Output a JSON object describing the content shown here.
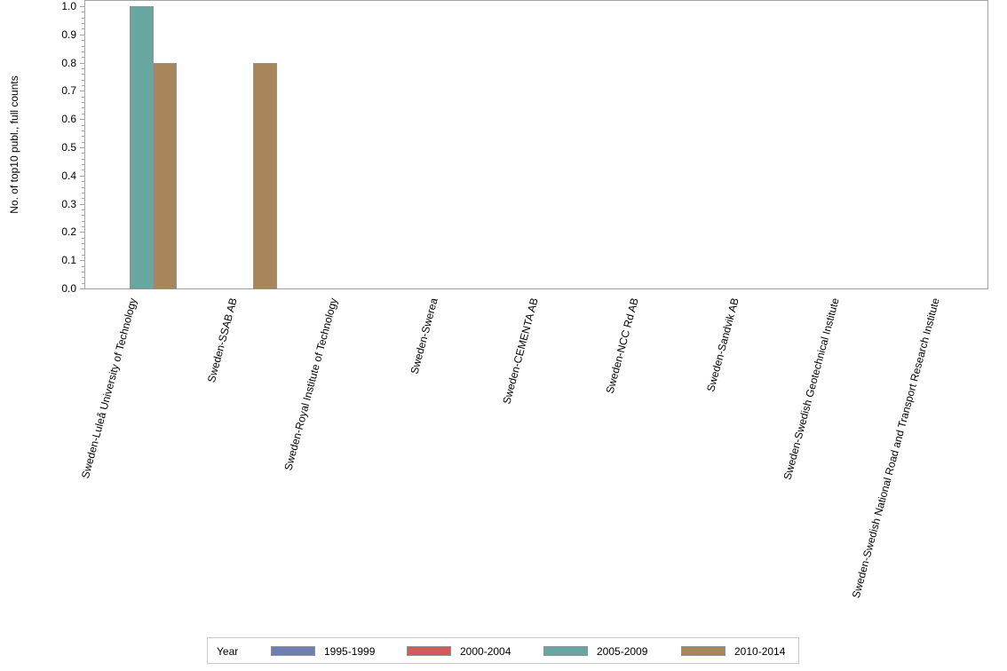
{
  "chart_data": {
    "type": "bar",
    "title": "",
    "xlabel": "",
    "ylabel": "No. of top10 publ., full counts",
    "ylim": [
      0,
      1.0
    ],
    "yticks": [
      "0.0",
      "0.1",
      "0.2",
      "0.3",
      "0.4",
      "0.5",
      "0.6",
      "0.7",
      "0.8",
      "0.9",
      "1.0"
    ],
    "categories": [
      "Sweden-Luleå University of Technology",
      "Sweden-SSAB AB",
      "Sweden-Royal Institute of Technology",
      "Sweden-Swerea",
      "Sweden-CEMENTA AB",
      "Sweden-NCC Rd AB",
      "Sweden-Sandvik AB",
      "Sweden-Swedish Geotechnical Institute",
      "Sweden-Swedish National Road and Transport Research Institute"
    ],
    "series": [
      {
        "name": "1995-1999",
        "color": "#6f7fb4",
        "values": [
          0,
          0,
          0,
          0,
          0,
          0,
          0,
          0,
          0
        ]
      },
      {
        "name": "2000-2004",
        "color": "#d05b5b",
        "values": [
          0,
          0,
          0,
          0,
          0,
          0,
          0,
          0,
          0
        ]
      },
      {
        "name": "2005-2009",
        "color": "#66a7a0",
        "values": [
          1.0,
          0,
          0,
          0,
          0,
          0,
          0,
          0,
          0
        ]
      },
      {
        "name": "2010-2014",
        "color": "#a8865c",
        "values": [
          0.8,
          0.8,
          0,
          0,
          0,
          0,
          0,
          0,
          0
        ]
      }
    ],
    "legend": {
      "title": "Year",
      "position": "bottom"
    },
    "grid": false
  }
}
